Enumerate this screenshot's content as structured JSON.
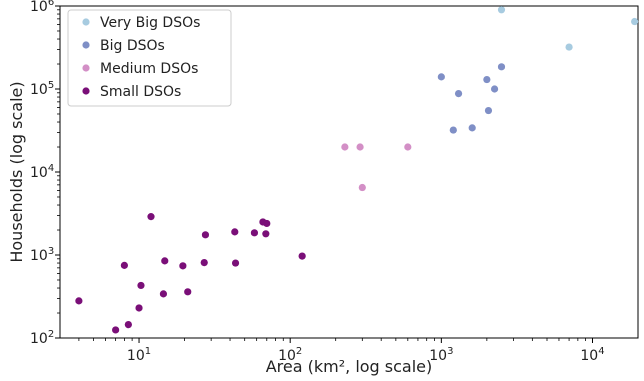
{
  "chart_data": {
    "type": "scatter",
    "title": "",
    "xlabel": "Area (km², log scale)",
    "ylabel": "Households (log scale)",
    "xscale": "log",
    "yscale": "log",
    "xlim": [
      3,
      20000
    ],
    "ylim": [
      100,
      1000000
    ],
    "grid": false,
    "legend_position": "top-left",
    "x_ticks": [
      {
        "value": 10,
        "base": "10",
        "exp": "1"
      },
      {
        "value": 100,
        "base": "10",
        "exp": "2"
      },
      {
        "value": 1000,
        "base": "10",
        "exp": "3"
      },
      {
        "value": 10000,
        "base": "10",
        "exp": "4"
      }
    ],
    "y_ticks": [
      {
        "value": 100,
        "base": "10",
        "exp": "2"
      },
      {
        "value": 1000,
        "base": "10",
        "exp": "3"
      },
      {
        "value": 10000,
        "base": "10",
        "exp": "4"
      },
      {
        "value": 100000,
        "base": "10",
        "exp": "5"
      },
      {
        "value": 1000000,
        "base": "10",
        "exp": "6"
      }
    ],
    "series": [
      {
        "name": "Very Big DSOs",
        "color": "#a7cbe0",
        "points": [
          {
            "x": 2500,
            "y": 900000
          },
          {
            "x": 7000,
            "y": 320000
          },
          {
            "x": 19000,
            "y": 650000
          }
        ]
      },
      {
        "name": "Big DSOs",
        "color": "#7f8fc6",
        "points": [
          {
            "x": 1000,
            "y": 140000
          },
          {
            "x": 1200,
            "y": 32000
          },
          {
            "x": 1300,
            "y": 88000
          },
          {
            "x": 1600,
            "y": 34000
          },
          {
            "x": 2000,
            "y": 130000
          },
          {
            "x": 2050,
            "y": 55000
          },
          {
            "x": 2250,
            "y": 100000
          },
          {
            "x": 2500,
            "y": 185000
          }
        ]
      },
      {
        "name": "Medium DSOs",
        "color": "#d38fc6",
        "points": [
          {
            "x": 230,
            "y": 20000
          },
          {
            "x": 290,
            "y": 20000
          },
          {
            "x": 300,
            "y": 6500
          },
          {
            "x": 600,
            "y": 20000
          }
        ]
      },
      {
        "name": "Small DSOs",
        "color": "#7a0f78",
        "points": [
          {
            "x": 4,
            "y": 280
          },
          {
            "x": 7,
            "y": 125
          },
          {
            "x": 8,
            "y": 750
          },
          {
            "x": 8.5,
            "y": 145
          },
          {
            "x": 10,
            "y": 230
          },
          {
            "x": 10.3,
            "y": 430
          },
          {
            "x": 12,
            "y": 2900
          },
          {
            "x": 14.5,
            "y": 340
          },
          {
            "x": 14.8,
            "y": 850
          },
          {
            "x": 19.5,
            "y": 740
          },
          {
            "x": 21,
            "y": 360
          },
          {
            "x": 27,
            "y": 810
          },
          {
            "x": 27.5,
            "y": 1750
          },
          {
            "x": 43,
            "y": 1900
          },
          {
            "x": 43.5,
            "y": 800
          },
          {
            "x": 58,
            "y": 1850
          },
          {
            "x": 66,
            "y": 2500
          },
          {
            "x": 69,
            "y": 1800
          },
          {
            "x": 70,
            "y": 2400
          },
          {
            "x": 120,
            "y": 970
          }
        ]
      }
    ]
  }
}
